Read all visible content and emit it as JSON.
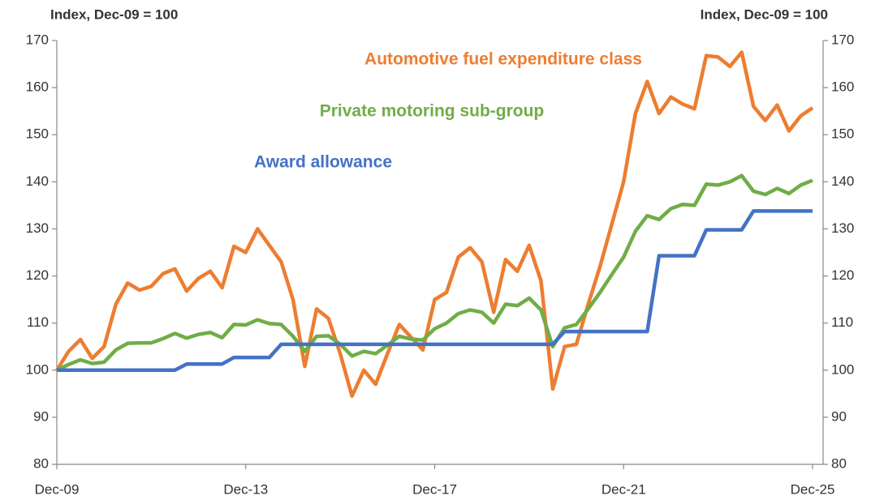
{
  "chart_data": {
    "type": "line",
    "y_label": "Index, Dec-09 = 100",
    "y2_label": "Index, Dec-09 = 100",
    "categories": [
      "Dec-09",
      null,
      null,
      null,
      null,
      null,
      null,
      null,
      null,
      null,
      null,
      null,
      null,
      null,
      null,
      null,
      "Dec-13",
      null,
      null,
      null,
      null,
      null,
      null,
      null,
      null,
      null,
      null,
      null,
      null,
      null,
      null,
      null,
      "Dec-17",
      null,
      null,
      null,
      null,
      null,
      null,
      null,
      null,
      null,
      null,
      null,
      null,
      null,
      null,
      null,
      "Dec-21",
      null,
      null,
      null,
      null,
      null,
      null,
      null,
      null,
      null,
      null,
      null,
      null,
      null,
      null,
      null,
      "Dec-25"
    ],
    "series": [
      {
        "name": "Automotive fuel expenditure class",
        "color": "#ed7d31",
        "values": [
          100,
          104,
          106.5,
          102.5,
          105,
          114,
          118.5,
          117,
          117.8,
          120.5,
          121.5,
          116.8,
          119.5,
          121,
          117.5,
          126.3,
          125,
          130,
          126.5,
          123,
          115,
          100.8,
          113,
          111,
          103.5,
          94.5,
          100,
          97,
          103.5,
          109.7,
          107,
          104.3,
          115,
          116.5,
          124,
          126,
          123,
          112.3,
          123.5,
          121,
          126.5,
          119,
          96,
          105,
          105.5,
          114,
          122,
          131,
          140,
          154.5,
          161.3,
          154.5,
          158,
          156.5,
          155.5,
          166.8,
          166.5,
          164.5,
          167.5,
          156,
          153,
          156.3,
          150.8,
          154,
          155.7
        ]
      },
      {
        "name": "Private motoring sub-group",
        "color": "#70ad47",
        "values": [
          100,
          101.2,
          102.2,
          101.4,
          101.7,
          104.3,
          105.7,
          105.8,
          105.8,
          106.7,
          107.8,
          106.8,
          107.6,
          108,
          106.9,
          109.7,
          109.6,
          110.7,
          109.9,
          109.7,
          107.2,
          104,
          107.2,
          107.3,
          105.5,
          103,
          104,
          103.5,
          105.3,
          107.2,
          106.6,
          106.4,
          108.8,
          110,
          112,
          112.8,
          112.3,
          110,
          114,
          113.7,
          115.3,
          112.8,
          105,
          109,
          109.7,
          113,
          116.5,
          120.3,
          124,
          129.5,
          132.8,
          132,
          134.3,
          135.2,
          135,
          139.5,
          139.3,
          140,
          141.3,
          138,
          137.3,
          138.6,
          137.5,
          139.3,
          140.3
        ]
      },
      {
        "name": "Award allowance",
        "color": "#4472c4",
        "values": [
          100,
          100,
          100,
          100,
          100,
          100,
          100,
          100,
          100,
          100,
          100,
          101.3,
          101.3,
          101.3,
          101.3,
          102.7,
          102.7,
          102.7,
          102.7,
          105.5,
          105.5,
          105.5,
          105.5,
          105.5,
          105.5,
          105.5,
          105.5,
          105.5,
          105.5,
          105.5,
          105.5,
          105.5,
          105.5,
          105.5,
          105.5,
          105.5,
          105.5,
          105.5,
          105.5,
          105.5,
          105.5,
          105.5,
          105.5,
          108.2,
          108.2,
          108.2,
          108.2,
          108.2,
          108.2,
          108.2,
          108.2,
          124.3,
          124.3,
          124.3,
          124.3,
          129.8,
          129.8,
          129.8,
          129.8,
          133.8,
          133.8,
          133.8,
          133.8,
          133.8,
          133.8
        ]
      }
    ],
    "ylim": [
      80,
      170
    ],
    "yticks": [
      80,
      90,
      100,
      110,
      120,
      130,
      140,
      150,
      160,
      170
    ],
    "y2lim": [
      80,
      170
    ],
    "y2ticks": [
      80,
      90,
      100,
      110,
      120,
      130,
      140,
      150,
      160,
      170
    ],
    "grid": false
  }
}
